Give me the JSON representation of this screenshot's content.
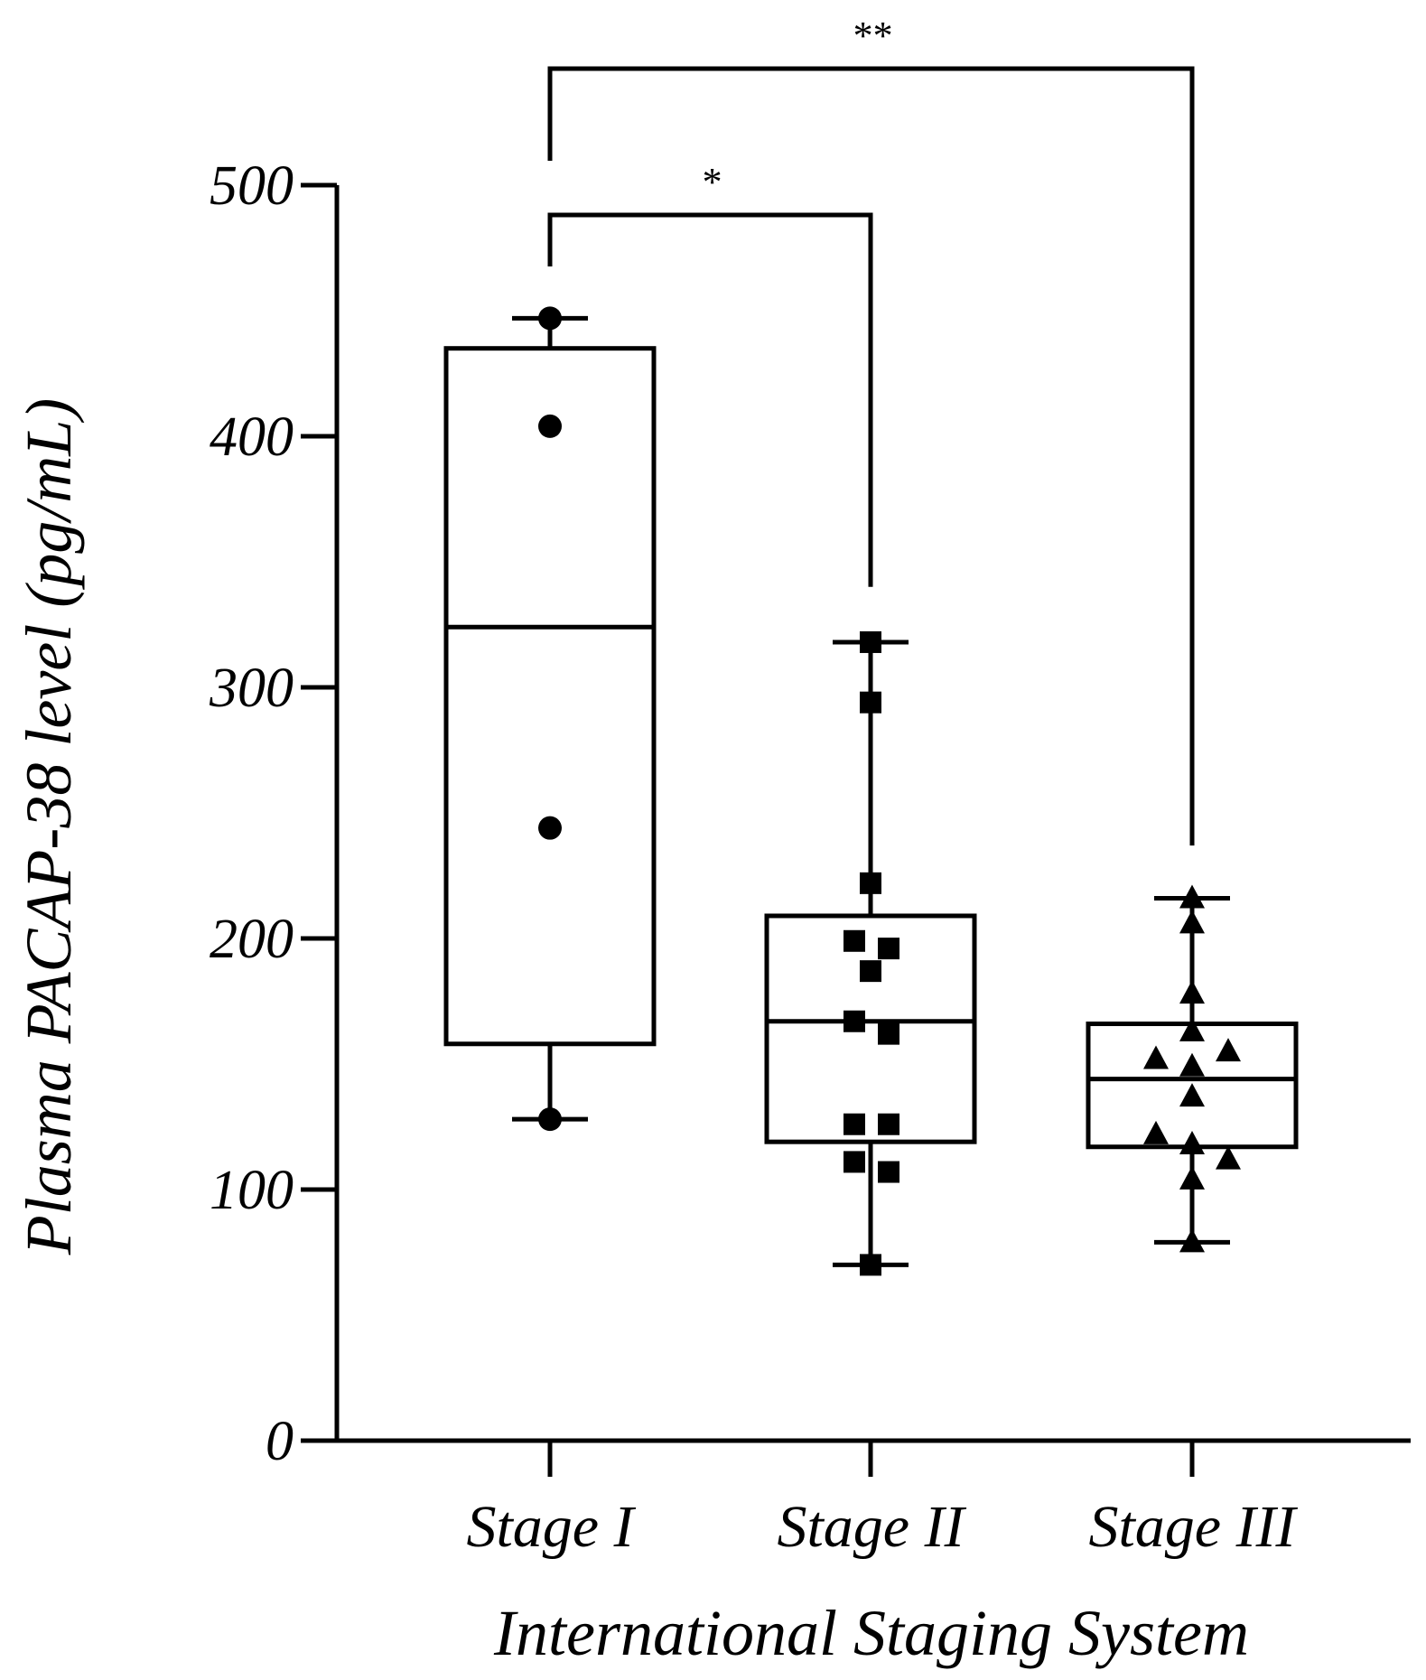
{
  "chart_data": {
    "type": "box",
    "xlabel": "International Staging System",
    "ylabel": "Plasma PACAP-38 level (pg/mL)",
    "ylim": [
      0,
      500
    ],
    "yticks": [
      0,
      100,
      200,
      300,
      400,
      500
    ],
    "categories": [
      "Stage I",
      "Stage II",
      "Stage III"
    ],
    "series": [
      {
        "category": "Stage I",
        "marker": "circle",
        "min": 128,
        "q1": 158,
        "median": 324,
        "q3": 435,
        "max": 447,
        "points": [
          447,
          404,
          244,
          128
        ]
      },
      {
        "category": "Stage II",
        "marker": "square",
        "min": 70,
        "q1": 119,
        "median": 167,
        "q3": 209,
        "max": 318,
        "points": [
          318,
          294,
          222,
          199,
          196,
          187,
          167,
          162,
          126,
          126,
          111,
          107,
          70
        ]
      },
      {
        "category": "Stage III",
        "marker": "triangle",
        "min": 79,
        "q1": 117,
        "median": 144,
        "q3": 166,
        "max": 216,
        "points": [
          216,
          206,
          178,
          163,
          155,
          152,
          149,
          137,
          122,
          118,
          112,
          104,
          79
        ]
      }
    ],
    "significance": [
      {
        "from": "Stage I",
        "to": "Stage II",
        "label": "*"
      },
      {
        "from": "Stage I",
        "to": "Stage III",
        "label": "**"
      }
    ],
    "colors": {
      "ink": "#000000",
      "background": "#ffffff"
    }
  }
}
